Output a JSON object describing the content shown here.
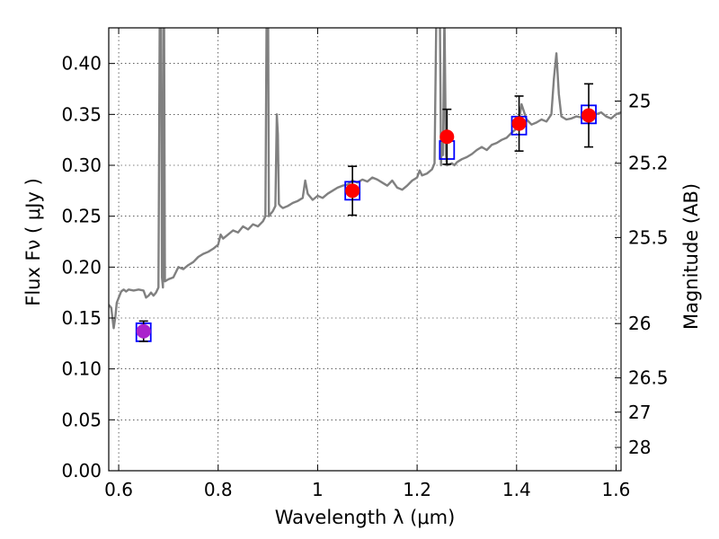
{
  "chart_data": {
    "type": "line",
    "xlabel": "Wavelength  λ (μm)",
    "ylabel": "Flux  Fν  ( μJy )",
    "y2label": "Magnitude (AB)",
    "xlim": [
      0.58,
      1.61
    ],
    "ylim": [
      0.0,
      0.435
    ],
    "grid": true,
    "x_ticks": [
      0.6,
      0.8,
      1.0,
      1.2,
      1.4,
      1.6
    ],
    "x_tick_labels": [
      "0.6",
      "0.8",
      "1",
      "1.2",
      "1.4",
      "1.6"
    ],
    "y_ticks": [
      0.0,
      0.05,
      0.1,
      0.15,
      0.2,
      0.25,
      0.3,
      0.35,
      0.4
    ],
    "y_tick_labels": [
      "0.00",
      "0.05",
      "0.10",
      "0.15",
      "0.20",
      "0.25",
      "0.30",
      "0.35",
      "0.40"
    ],
    "mag_ticks": [
      25,
      25.2,
      25.5,
      26,
      26.5,
      27,
      28
    ],
    "mag_tick_labels": [
      "25",
      "25.2",
      "25.5",
      "26",
      "26.5",
      "27",
      "28"
    ],
    "spectrum": {
      "color": "#808080",
      "x": [
        0.58,
        0.585,
        0.59,
        0.593,
        0.596,
        0.6,
        0.605,
        0.61,
        0.615,
        0.62,
        0.63,
        0.64,
        0.65,
        0.655,
        0.66,
        0.665,
        0.67,
        0.675,
        0.68,
        0.683,
        0.685,
        0.687,
        0.689,
        0.691,
        0.693,
        0.7,
        0.71,
        0.715,
        0.72,
        0.73,
        0.74,
        0.75,
        0.76,
        0.77,
        0.78,
        0.79,
        0.8,
        0.805,
        0.81,
        0.82,
        0.83,
        0.84,
        0.85,
        0.86,
        0.87,
        0.88,
        0.89,
        0.895,
        0.898,
        0.9,
        0.902,
        0.905,
        0.91,
        0.915,
        0.918,
        0.92,
        0.922,
        0.925,
        0.93,
        0.94,
        0.95,
        0.96,
        0.97,
        0.975,
        0.98,
        0.99,
        1.0,
        1.01,
        1.02,
        1.03,
        1.04,
        1.05,
        1.06,
        1.07,
        1.08,
        1.09,
        1.1,
        1.11,
        1.12,
        1.13,
        1.14,
        1.15,
        1.16,
        1.17,
        1.18,
        1.19,
        1.2,
        1.205,
        1.21,
        1.22,
        1.23,
        1.235,
        1.24,
        1.245,
        1.248,
        1.25,
        1.252,
        1.255,
        1.258,
        1.26,
        1.27,
        1.275,
        1.28,
        1.29,
        1.3,
        1.31,
        1.32,
        1.33,
        1.34,
        1.35,
        1.36,
        1.37,
        1.38,
        1.39,
        1.4,
        1.405,
        1.41,
        1.42,
        1.43,
        1.44,
        1.45,
        1.46,
        1.47,
        1.475,
        1.48,
        1.485,
        1.49,
        1.5,
        1.51,
        1.52,
        1.53,
        1.54,
        1.55,
        1.56,
        1.57,
        1.58,
        1.59,
        1.6,
        1.61
      ],
      "y": [
        0.163,
        0.16,
        0.14,
        0.15,
        0.165,
        0.17,
        0.176,
        0.178,
        0.176,
        0.178,
        0.177,
        0.178,
        0.177,
        0.17,
        0.172,
        0.175,
        0.172,
        0.175,
        0.18,
        0.5,
        0.5,
        0.19,
        0.18,
        0.5,
        0.186,
        0.188,
        0.19,
        0.195,
        0.2,
        0.198,
        0.202,
        0.205,
        0.21,
        0.213,
        0.215,
        0.218,
        0.222,
        0.232,
        0.228,
        0.232,
        0.236,
        0.234,
        0.24,
        0.237,
        0.242,
        0.24,
        0.245,
        0.25,
        0.5,
        0.5,
        0.25,
        0.252,
        0.255,
        0.26,
        0.35,
        0.33,
        0.262,
        0.26,
        0.258,
        0.26,
        0.263,
        0.265,
        0.268,
        0.285,
        0.272,
        0.266,
        0.27,
        0.268,
        0.272,
        0.275,
        0.278,
        0.28,
        0.281,
        0.285,
        0.283,
        0.286,
        0.284,
        0.288,
        0.286,
        0.283,
        0.28,
        0.285,
        0.278,
        0.276,
        0.28,
        0.285,
        0.288,
        0.295,
        0.29,
        0.292,
        0.296,
        0.302,
        0.5,
        0.5,
        0.3,
        0.33,
        0.31,
        0.45,
        0.31,
        0.3,
        0.302,
        0.3,
        0.303,
        0.306,
        0.308,
        0.311,
        0.315,
        0.318,
        0.315,
        0.32,
        0.322,
        0.325,
        0.327,
        0.332,
        0.336,
        0.345,
        0.36,
        0.345,
        0.34,
        0.342,
        0.345,
        0.343,
        0.35,
        0.385,
        0.41,
        0.37,
        0.348,
        0.345,
        0.346,
        0.348,
        0.347,
        0.35,
        0.349,
        0.35,
        0.352,
        0.348,
        0.346,
        0.35,
        0.352
      ]
    },
    "model_points": {
      "color": "#0000ff",
      "marker": "square",
      "x": [
        0.65,
        1.07,
        1.26,
        1.405,
        1.545
      ],
      "y": [
        0.136,
        0.275,
        0.315,
        0.339,
        0.35
      ]
    },
    "observed_points": {
      "colors": [
        "#aa22cc",
        "#ff0000",
        "#ff0000",
        "#ff0000",
        "#ff0000"
      ],
      "marker": "circle",
      "x": [
        0.65,
        1.07,
        1.26,
        1.405,
        1.545
      ],
      "y": [
        0.137,
        0.275,
        0.328,
        0.341,
        0.349
      ],
      "yerr": [
        0.01,
        0.024,
        0.027,
        0.027,
        0.031
      ]
    }
  }
}
